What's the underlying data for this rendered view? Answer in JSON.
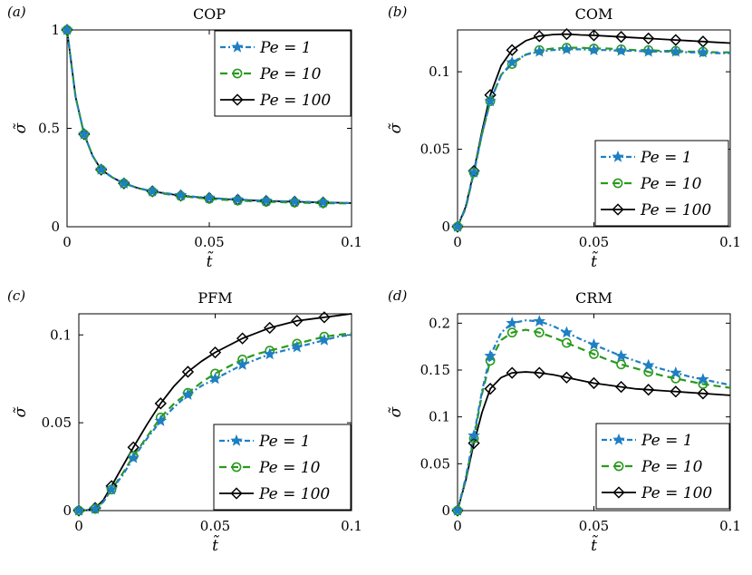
{
  "legend_labels": [
    "Pe = 1",
    "Pe = 10",
    "Pe = 100"
  ],
  "series_colors": [
    "#1f7fc4",
    "#2a9a1e",
    "#000000"
  ],
  "chart_data": [
    {
      "type": "line",
      "tag": "(a)",
      "title": "COP",
      "xlabel": "t̃",
      "ylabel": "σ̃",
      "xlim": [
        0,
        0.1
      ],
      "ylim": [
        0,
        1
      ],
      "xticks": [
        0,
        0.05,
        0.1
      ],
      "xtick_labels": [
        "0",
        "0.05",
        "0.1"
      ],
      "yticks": [
        0,
        0.5,
        1
      ],
      "ytick_labels": [
        "0",
        "0.5",
        "1"
      ],
      "legend_position": "top-right",
      "x": [
        0,
        0.003,
        0.006,
        0.009,
        0.012,
        0.016,
        0.02,
        0.025,
        0.03,
        0.035,
        0.04,
        0.045,
        0.05,
        0.055,
        0.06,
        0.065,
        0.07,
        0.075,
        0.08,
        0.085,
        0.09,
        0.095,
        0.1
      ],
      "markers_x": [
        0,
        0.006,
        0.012,
        0.02,
        0.03,
        0.04,
        0.05,
        0.06,
        0.07,
        0.08,
        0.09
      ],
      "series": [
        {
          "name": "Pe = 1",
          "values": [
            1.0,
            0.66,
            0.47,
            0.36,
            0.29,
            0.25,
            0.22,
            0.197,
            0.18,
            0.17,
            0.16,
            0.152,
            0.147,
            0.142,
            0.138,
            0.135,
            0.132,
            0.13,
            0.128,
            0.126,
            0.124,
            0.122,
            0.12
          ],
          "markers": [
            1.0,
            0.47,
            0.29,
            0.22,
            0.18,
            0.16,
            0.147,
            0.138,
            0.132,
            0.128,
            0.124
          ]
        },
        {
          "name": "Pe = 10",
          "values": [
            1.0,
            0.66,
            0.47,
            0.36,
            0.29,
            0.25,
            0.22,
            0.196,
            0.178,
            0.166,
            0.156,
            0.148,
            0.142,
            0.137,
            0.133,
            0.13,
            0.127,
            0.125,
            0.123,
            0.121,
            0.12,
            0.119,
            0.118
          ],
          "markers": [
            1.0,
            0.47,
            0.29,
            0.22,
            0.178,
            0.156,
            0.142,
            0.133,
            0.127,
            0.123,
            0.12
          ]
        },
        {
          "name": "Pe = 100",
          "values": [
            1.0,
            0.66,
            0.47,
            0.36,
            0.29,
            0.25,
            0.22,
            0.196,
            0.18,
            0.168,
            0.158,
            0.151,
            0.146,
            0.141,
            0.137,
            0.134,
            0.131,
            0.129,
            0.127,
            0.125,
            0.123,
            0.122,
            0.12
          ],
          "markers": [
            1.0,
            0.47,
            0.29,
            0.22,
            0.18,
            0.158,
            0.146,
            0.137,
            0.131,
            0.127,
            0.123
          ]
        }
      ]
    },
    {
      "type": "line",
      "tag": "(b)",
      "title": "COM",
      "xlabel": "t̃",
      "ylabel": "σ̃",
      "xlim": [
        0,
        0.1
      ],
      "ylim": [
        0,
        0.127
      ],
      "xticks": [
        0,
        0.05,
        0.1
      ],
      "xtick_labels": [
        "0",
        "0.05",
        "0.1"
      ],
      "yticks": [
        0,
        0.05,
        0.1
      ],
      "ytick_labels": [
        "0",
        "0.05",
        "0.1"
      ],
      "legend_position": "bottom-right",
      "x": [
        0,
        0.003,
        0.006,
        0.009,
        0.012,
        0.016,
        0.02,
        0.025,
        0.03,
        0.035,
        0.04,
        0.045,
        0.05,
        0.055,
        0.06,
        0.065,
        0.07,
        0.075,
        0.08,
        0.085,
        0.09,
        0.095,
        0.1
      ],
      "markers_x": [
        0,
        0.006,
        0.012,
        0.02,
        0.03,
        0.04,
        0.05,
        0.06,
        0.07,
        0.08,
        0.09
      ],
      "series": [
        {
          "name": "Pe = 1",
          "values": [
            0,
            0.012,
            0.035,
            0.06,
            0.081,
            0.098,
            0.106,
            0.111,
            0.113,
            0.114,
            0.1145,
            0.1145,
            0.114,
            0.114,
            0.1135,
            0.1135,
            0.113,
            0.113,
            0.113,
            0.1125,
            0.1125,
            0.112,
            0.112
          ],
          "markers": [
            0,
            0.035,
            0.081,
            0.106,
            0.113,
            0.1145,
            0.114,
            0.1135,
            0.113,
            0.113,
            0.1125
          ]
        },
        {
          "name": "Pe = 10",
          "values": [
            0,
            0.012,
            0.035,
            0.06,
            0.081,
            0.098,
            0.105,
            0.111,
            0.114,
            0.115,
            0.1155,
            0.1155,
            0.115,
            0.115,
            0.1145,
            0.114,
            0.114,
            0.1135,
            0.1135,
            0.113,
            0.113,
            0.1125,
            0.1125
          ],
          "markers": [
            0,
            0.035,
            0.081,
            0.105,
            0.114,
            0.1155,
            0.115,
            0.1145,
            0.114,
            0.1135,
            0.113
          ]
        },
        {
          "name": "Pe = 100",
          "values": [
            0,
            0.013,
            0.036,
            0.062,
            0.085,
            0.104,
            0.114,
            0.12,
            0.123,
            0.124,
            0.1243,
            0.1238,
            0.1235,
            0.123,
            0.1225,
            0.122,
            0.1215,
            0.121,
            0.1205,
            0.12,
            0.1195,
            0.119,
            0.1185
          ],
          "markers": [
            0,
            0.036,
            0.085,
            0.114,
            0.123,
            0.1243,
            0.1235,
            0.1225,
            0.1215,
            0.1205,
            0.1195
          ]
        }
      ]
    },
    {
      "type": "line",
      "tag": "(c)",
      "title": "PFM",
      "xlabel": "t̃",
      "ylabel": "σ̃",
      "xlim": [
        0,
        0.1
      ],
      "ylim": [
        0,
        0.112
      ],
      "xticks": [
        0,
        0.05,
        0.1
      ],
      "xtick_labels": [
        "0",
        "0.05",
        "0.1"
      ],
      "yticks": [
        0,
        0.05,
        0.1
      ],
      "ytick_labels": [
        "0",
        "0.05",
        "0.1"
      ],
      "legend_position": "bottom-right",
      "x": [
        0,
        0.003,
        0.006,
        0.009,
        0.012,
        0.016,
        0.02,
        0.025,
        0.03,
        0.035,
        0.04,
        0.045,
        0.05,
        0.055,
        0.06,
        0.065,
        0.07,
        0.075,
        0.08,
        0.085,
        0.09,
        0.095,
        0.1
      ],
      "markers_x": [
        0,
        0.006,
        0.012,
        0.02,
        0.03,
        0.04,
        0.05,
        0.06,
        0.07,
        0.08,
        0.09
      ],
      "series": [
        {
          "name": "Pe = 1",
          "values": [
            0,
            0.0002,
            0.001,
            0.005,
            0.012,
            0.02,
            0.03,
            0.041,
            0.051,
            0.059,
            0.066,
            0.071,
            0.075,
            0.079,
            0.083,
            0.086,
            0.089,
            0.091,
            0.093,
            0.095,
            0.097,
            0.099,
            0.1
          ],
          "markers": [
            0,
            0.001,
            0.012,
            0.03,
            0.051,
            0.066,
            0.075,
            0.083,
            0.089,
            0.093,
            0.097
          ]
        },
        {
          "name": "Pe = 10",
          "values": [
            0,
            0.0002,
            0.001,
            0.005,
            0.012,
            0.021,
            0.031,
            0.042,
            0.053,
            0.061,
            0.067,
            0.073,
            0.078,
            0.082,
            0.086,
            0.089,
            0.091,
            0.093,
            0.095,
            0.097,
            0.099,
            0.1,
            0.101
          ],
          "markers": [
            0,
            0.001,
            0.012,
            0.031,
            0.053,
            0.067,
            0.078,
            0.086,
            0.091,
            0.095,
            0.099
          ]
        },
        {
          "name": "Pe = 100",
          "values": [
            0,
            0.0003,
            0.0015,
            0.006,
            0.014,
            0.025,
            0.036,
            0.049,
            0.061,
            0.071,
            0.079,
            0.085,
            0.09,
            0.094,
            0.098,
            0.101,
            0.104,
            0.106,
            0.108,
            0.109,
            0.11,
            0.111,
            0.112
          ],
          "markers": [
            0,
            0.0015,
            0.014,
            0.036,
            0.061,
            0.079,
            0.09,
            0.098,
            0.104,
            0.108,
            0.11
          ]
        }
      ]
    },
    {
      "type": "line",
      "tag": "(d)",
      "title": "CRM",
      "xlabel": "t̃",
      "ylabel": "σ̃",
      "xlim": [
        0,
        0.1
      ],
      "ylim": [
        0,
        0.21
      ],
      "xticks": [
        0,
        0.05,
        0.1
      ],
      "xtick_labels": [
        "0",
        "0.05",
        "0.1"
      ],
      "yticks": [
        0,
        0.05,
        0.1,
        0.15,
        0.2
      ],
      "ytick_labels": [
        "0",
        "0.05",
        "0.1",
        "0.15",
        "0.2"
      ],
      "legend_position": "bottom-right",
      "x": [
        0,
        0.003,
        0.006,
        0.009,
        0.012,
        0.016,
        0.02,
        0.025,
        0.03,
        0.035,
        0.04,
        0.045,
        0.05,
        0.055,
        0.06,
        0.065,
        0.07,
        0.075,
        0.08,
        0.085,
        0.09,
        0.095,
        0.1
      ],
      "markers_x": [
        0,
        0.006,
        0.012,
        0.02,
        0.03,
        0.04,
        0.05,
        0.06,
        0.07,
        0.08,
        0.09
      ],
      "series": [
        {
          "name": "Pe = 1",
          "values": [
            0,
            0.035,
            0.08,
            0.128,
            0.165,
            0.19,
            0.2,
            0.203,
            0.202,
            0.197,
            0.19,
            0.183,
            0.177,
            0.171,
            0.165,
            0.16,
            0.155,
            0.151,
            0.147,
            0.143,
            0.14,
            0.137,
            0.134
          ],
          "markers": [
            0,
            0.08,
            0.165,
            0.2,
            0.202,
            0.19,
            0.177,
            0.165,
            0.155,
            0.147,
            0.14
          ]
        },
        {
          "name": "Pe = 10",
          "values": [
            0,
            0.034,
            0.077,
            0.125,
            0.16,
            0.182,
            0.19,
            0.193,
            0.19,
            0.185,
            0.179,
            0.173,
            0.167,
            0.161,
            0.156,
            0.152,
            0.148,
            0.144,
            0.141,
            0.138,
            0.135,
            0.133,
            0.131
          ],
          "markers": [
            0,
            0.077,
            0.16,
            0.19,
            0.19,
            0.179,
            0.167,
            0.156,
            0.148,
            0.141,
            0.135
          ]
        },
        {
          "name": "Pe = 100",
          "values": [
            0,
            0.032,
            0.072,
            0.105,
            0.13,
            0.142,
            0.147,
            0.148,
            0.147,
            0.145,
            0.142,
            0.139,
            0.136,
            0.134,
            0.132,
            0.13,
            0.129,
            0.128,
            0.127,
            0.126,
            0.125,
            0.124,
            0.123
          ],
          "markers": [
            0,
            0.072,
            0.13,
            0.147,
            0.147,
            0.142,
            0.136,
            0.132,
            0.129,
            0.127,
            0.125
          ]
        }
      ]
    }
  ]
}
